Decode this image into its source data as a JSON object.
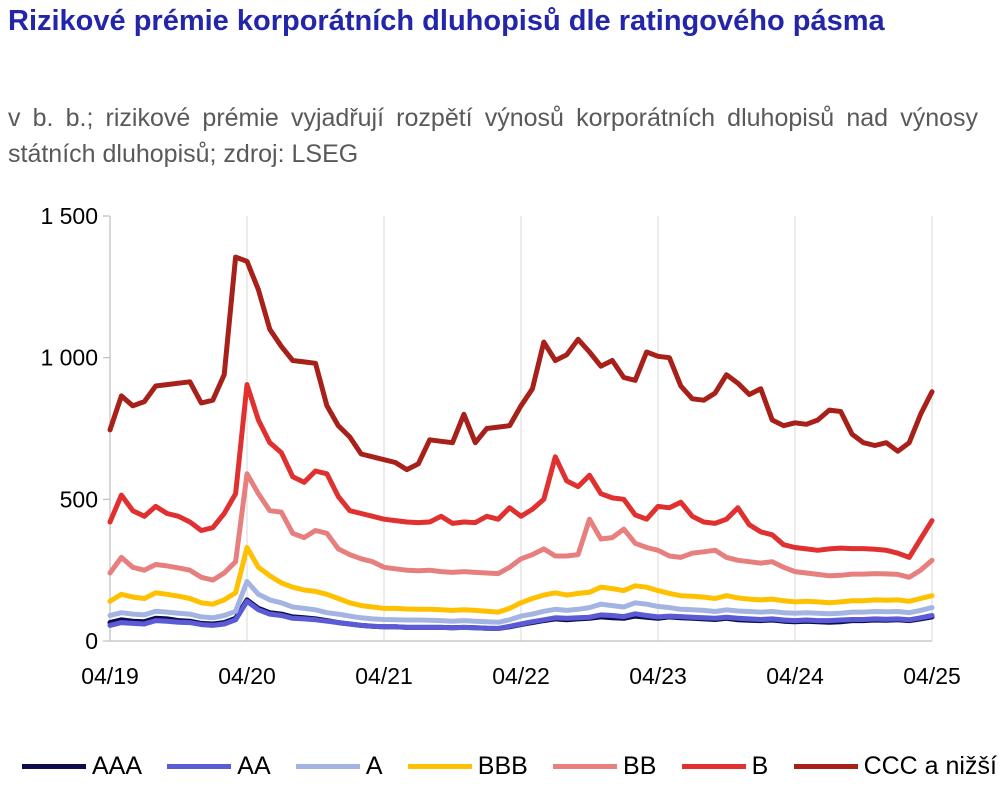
{
  "title": "Rizikové prémie korporátních dluhopisů dle ratingového pásma",
  "subtitle": "v b. b.; rizikové prémie vyjadřují rozpětí výnosů korporátních dluhopisů nad výnosy státních dluhopisů; zdroj: LSEG",
  "chart_data": {
    "type": "line",
    "title": "Rizikové prémie korporátních dluhopisů dle ratingového pásma",
    "ylim": [
      0,
      1500
    ],
    "y_ticks": [
      0,
      500,
      1000,
      1500
    ],
    "y_tick_labels": [
      "0",
      "500",
      "1 000",
      "1 500"
    ],
    "x_ticks": [
      "04/19",
      "04/20",
      "04/21",
      "04/22",
      "04/23",
      "04/24",
      "04/25"
    ],
    "x": [
      "04/19",
      "05/19",
      "06/19",
      "07/19",
      "08/19",
      "09/19",
      "10/19",
      "11/19",
      "12/19",
      "01/20",
      "02/20",
      "03/20",
      "04/20",
      "05/20",
      "06/20",
      "07/20",
      "08/20",
      "09/20",
      "10/20",
      "11/20",
      "12/20",
      "01/21",
      "02/21",
      "03/21",
      "04/21",
      "05/21",
      "06/21",
      "07/21",
      "08/21",
      "09/21",
      "10/21",
      "11/21",
      "12/21",
      "01/22",
      "02/22",
      "03/22",
      "04/22",
      "05/22",
      "06/22",
      "07/22",
      "08/22",
      "09/22",
      "10/22",
      "11/22",
      "12/22",
      "01/23",
      "02/23",
      "03/23",
      "04/23",
      "05/23",
      "06/23",
      "07/23",
      "08/23",
      "09/23",
      "10/23",
      "11/23",
      "12/23",
      "01/24",
      "02/24",
      "03/24",
      "04/24",
      "05/24",
      "06/24",
      "07/24",
      "08/24",
      "09/24",
      "10/24",
      "11/24",
      "12/24",
      "01/25",
      "02/25",
      "03/25",
      "04/25"
    ],
    "grid": "vertical",
    "legend_position": "bottom",
    "series": [
      {
        "name": "AAA",
        "color": "#0d0d4d",
        "values": [
          65,
          75,
          70,
          68,
          80,
          78,
          72,
          70,
          62,
          60,
          65,
          80,
          145,
          115,
          100,
          95,
          85,
          82,
          78,
          72,
          65,
          60,
          55,
          52,
          50,
          50,
          48,
          48,
          48,
          48,
          47,
          48,
          47,
          45,
          44,
          50,
          58,
          65,
          72,
          78,
          75,
          78,
          80,
          85,
          82,
          80,
          88,
          84,
          80,
          85,
          82,
          80,
          78,
          76,
          80,
          75,
          73,
          72,
          74,
          70,
          68,
          70,
          68,
          66,
          68,
          72,
          72,
          74,
          73,
          75,
          72,
          78,
          85
        ]
      },
      {
        "name": "AA",
        "color": "#5b5bd6",
        "values": [
          55,
          65,
          62,
          60,
          72,
          70,
          66,
          65,
          58,
          55,
          60,
          75,
          140,
          110,
          95,
          90,
          80,
          78,
          75,
          70,
          65,
          60,
          55,
          52,
          50,
          50,
          48,
          48,
          48,
          48,
          47,
          48,
          47,
          45,
          44,
          52,
          60,
          68,
          75,
          82,
          80,
          82,
          84,
          92,
          90,
          86,
          96,
          90,
          85,
          88,
          86,
          84,
          82,
          80,
          84,
          80,
          78,
          76,
          78,
          74,
          72,
          74,
          72,
          72,
          74,
          76,
          76,
          78,
          77,
          78,
          75,
          82,
          90
        ]
      },
      {
        "name": "A",
        "color": "#a3b4e3",
        "values": [
          90,
          100,
          95,
          92,
          105,
          102,
          98,
          95,
          85,
          82,
          90,
          105,
          210,
          165,
          145,
          135,
          120,
          115,
          110,
          100,
          95,
          88,
          82,
          78,
          76,
          75,
          74,
          74,
          73,
          72,
          70,
          72,
          70,
          68,
          66,
          75,
          88,
          95,
          105,
          112,
          108,
          112,
          118,
          130,
          125,
          120,
          135,
          130,
          122,
          118,
          112,
          110,
          108,
          104,
          110,
          106,
          104,
          102,
          104,
          100,
          98,
          100,
          98,
          96,
          98,
          102,
          102,
          104,
          103,
          104,
          100,
          108,
          118
        ]
      },
      {
        "name": "BBB",
        "color": "#ffc000",
        "values": [
          140,
          165,
          155,
          150,
          170,
          165,
          158,
          150,
          135,
          130,
          145,
          170,
          330,
          260,
          230,
          205,
          190,
          180,
          175,
          165,
          150,
          135,
          125,
          120,
          115,
          115,
          113,
          112,
          112,
          110,
          108,
          110,
          108,
          105,
          102,
          115,
          135,
          150,
          162,
          170,
          162,
          168,
          172,
          190,
          185,
          178,
          195,
          190,
          178,
          168,
          160,
          158,
          155,
          150,
          160,
          152,
          148,
          145,
          148,
          142,
          138,
          140,
          138,
          135,
          138,
          142,
          142,
          145,
          144,
          145,
          140,
          150,
          160
        ]
      },
      {
        "name": "BB",
        "color": "#e77f7f",
        "values": [
          240,
          295,
          260,
          250,
          270,
          265,
          258,
          250,
          225,
          215,
          240,
          280,
          590,
          520,
          460,
          455,
          380,
          365,
          390,
          380,
          325,
          305,
          290,
          280,
          260,
          255,
          250,
          248,
          250,
          245,
          242,
          245,
          242,
          240,
          238,
          260,
          290,
          305,
          325,
          300,
          300,
          305,
          430,
          360,
          365,
          395,
          345,
          330,
          320,
          300,
          295,
          310,
          315,
          320,
          295,
          285,
          280,
          275,
          280,
          260,
          245,
          240,
          235,
          230,
          232,
          236,
          236,
          238,
          237,
          235,
          225,
          250,
          285
        ]
      },
      {
        "name": "B",
        "color": "#e03030",
        "values": [
          420,
          515,
          460,
          440,
          475,
          450,
          440,
          420,
          390,
          400,
          450,
          520,
          905,
          780,
          700,
          665,
          580,
          560,
          600,
          590,
          510,
          460,
          450,
          440,
          430,
          425,
          420,
          418,
          420,
          440,
          415,
          420,
          418,
          440,
          430,
          470,
          440,
          465,
          500,
          650,
          565,
          545,
          585,
          520,
          505,
          500,
          445,
          430,
          475,
          470,
          490,
          440,
          420,
          415,
          430,
          470,
          410,
          385,
          375,
          340,
          330,
          325,
          320,
          325,
          328,
          326,
          326,
          324,
          320,
          310,
          295,
          360,
          425
        ]
      },
      {
        "name": "CCC a nižší",
        "color": "#a8201a",
        "values": [
          745,
          865,
          830,
          845,
          900,
          905,
          910,
          915,
          840,
          850,
          940,
          1355,
          1340,
          1240,
          1100,
          1040,
          990,
          985,
          980,
          830,
          760,
          720,
          660,
          650,
          640,
          630,
          605,
          625,
          710,
          705,
          700,
          800,
          700,
          750,
          755,
          760,
          830,
          890,
          1055,
          990,
          1010,
          1065,
          1020,
          970,
          990,
          930,
          920,
          1020,
          1005,
          1000,
          900,
          855,
          850,
          875,
          940,
          910,
          870,
          890,
          780,
          760,
          770,
          765,
          780,
          815,
          810,
          730,
          700,
          690,
          700,
          670,
          700,
          800,
          880
        ]
      }
    ]
  }
}
